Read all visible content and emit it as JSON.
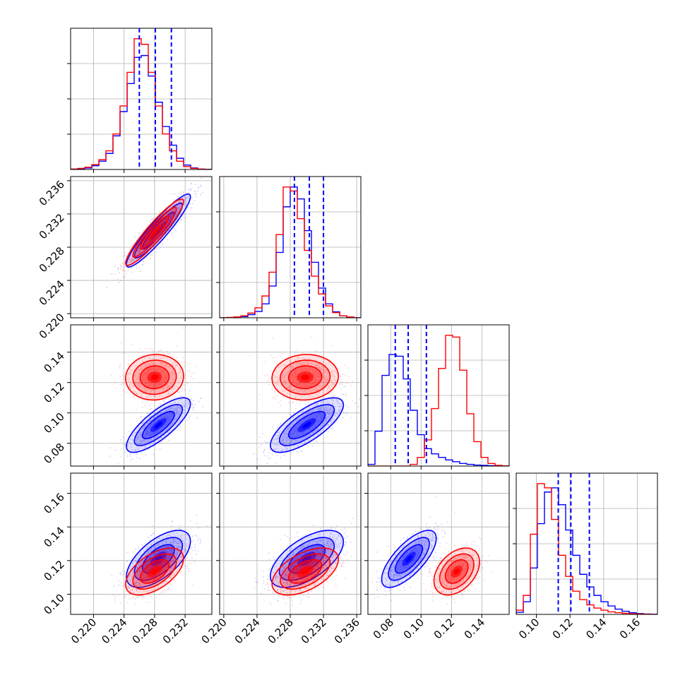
{
  "chart_data": {
    "type": "corner",
    "grid": true,
    "parameters": 4,
    "series": [
      {
        "color": "#0000ff",
        "means": [
          0.2285,
          0.23,
          0.092,
          0.121
        ],
        "sds": [
          0.0021,
          0.0022,
          0.009,
          0.0085
        ],
        "corr": [
          [
            1,
            0.93,
            0.78,
            0.62
          ],
          [
            0.93,
            1,
            0.74,
            0.6
          ],
          [
            0.78,
            0.74,
            1,
            0.72
          ],
          [
            0.62,
            0.6,
            0.72,
            1
          ]
        ]
      },
      {
        "color": "#ff0000",
        "means": [
          0.228,
          0.2298,
          0.1235,
          0.1135
        ],
        "sds": [
          0.0019,
          0.002,
          0.0075,
          0.007
        ],
        "corr": [
          [
            1,
            0.93,
            0.05,
            0.55
          ],
          [
            0.93,
            1,
            0.05,
            0.52
          ],
          [
            0.05,
            0.05,
            1,
            0.4
          ],
          [
            0.55,
            0.52,
            0.4,
            1
          ]
        ]
      }
    ],
    "quantile_color": "#0000ff",
    "quantiles": [
      [
        0.226,
        0.2281,
        0.2302
      ],
      [
        0.2285,
        0.2303,
        0.232
      ],
      [
        0.083,
        0.0915,
        0.1035
      ],
      [
        0.113,
        0.1205,
        0.1315
      ]
    ],
    "hist_blue": [
      [
        0.001,
        0.002,
        0.004,
        0.01,
        0.022,
        0.043,
        0.09,
        0.155,
        0.23,
        0.3,
        0.305,
        0.25,
        0.18,
        0.115,
        0.065,
        0.03,
        0.012,
        0.004,
        0.001,
        0.0005
      ],
      [
        0,
        0,
        0.001,
        0.003,
        0.008,
        0.016,
        0.035,
        0.08,
        0.165,
        0.28,
        0.33,
        0.3,
        0.22,
        0.14,
        0.075,
        0.035,
        0.015,
        0.005,
        0.001,
        0
      ],
      [
        0.01,
        0.2,
        0.52,
        0.64,
        0.63,
        0.5,
        0.32,
        0.18,
        0.1,
        0.07,
        0.05,
        0.035,
        0.025,
        0.015,
        0.01,
        0.006,
        0.004,
        0.002,
        0.001,
        0
      ],
      [
        0.01,
        0.06,
        0.22,
        0.43,
        0.58,
        0.6,
        0.52,
        0.4,
        0.28,
        0.19,
        0.13,
        0.09,
        0.06,
        0.04,
        0.025,
        0.015,
        0.008,
        0.004,
        0.002,
        0.001
      ]
    ],
    "hist_red": [
      [
        0.001,
        0.003,
        0.006,
        0.013,
        0.026,
        0.05,
        0.095,
        0.17,
        0.26,
        0.35,
        0.335,
        0.26,
        0.17,
        0.095,
        0.05,
        0.022,
        0.008,
        0.003,
        0.001,
        0
      ],
      [
        0,
        0.001,
        0.002,
        0.005,
        0.012,
        0.025,
        0.055,
        0.115,
        0.21,
        0.33,
        0.32,
        0.25,
        0.17,
        0.105,
        0.06,
        0.03,
        0.013,
        0.005,
        0.002,
        0
      ],
      [
        0,
        0,
        0,
        0,
        0,
        0,
        0.01,
        0.05,
        0.15,
        0.33,
        0.56,
        0.75,
        0.74,
        0.55,
        0.3,
        0.14,
        0.05,
        0.015,
        0.004,
        0.001
      ],
      [
        0.02,
        0.09,
        0.38,
        0.62,
        0.6,
        0.45,
        0.28,
        0.18,
        0.11,
        0.07,
        0.045,
        0.03,
        0.02,
        0.012,
        0.008,
        0.005,
        0.003,
        0.002,
        0.001,
        0
      ]
    ],
    "axes": [
      {
        "range": [
          0.217,
          0.2355
        ],
        "ticks": [
          "0.220",
          "0.224",
          "0.228",
          "0.232"
        ]
      },
      {
        "range": [
          0.2195,
          0.2365
        ],
        "ticks": [
          "0.220",
          "0.224",
          "0.228",
          "0.232",
          "0.236"
        ]
      },
      {
        "range": [
          0.065,
          0.158
        ],
        "ticks": [
          "0.08",
          "0.10",
          "0.12",
          "0.14"
        ]
      },
      {
        "range": [
          0.088,
          0.172
        ],
        "ticks": [
          "0.10",
          "0.12",
          "0.14",
          "0.16"
        ]
      }
    ]
  }
}
